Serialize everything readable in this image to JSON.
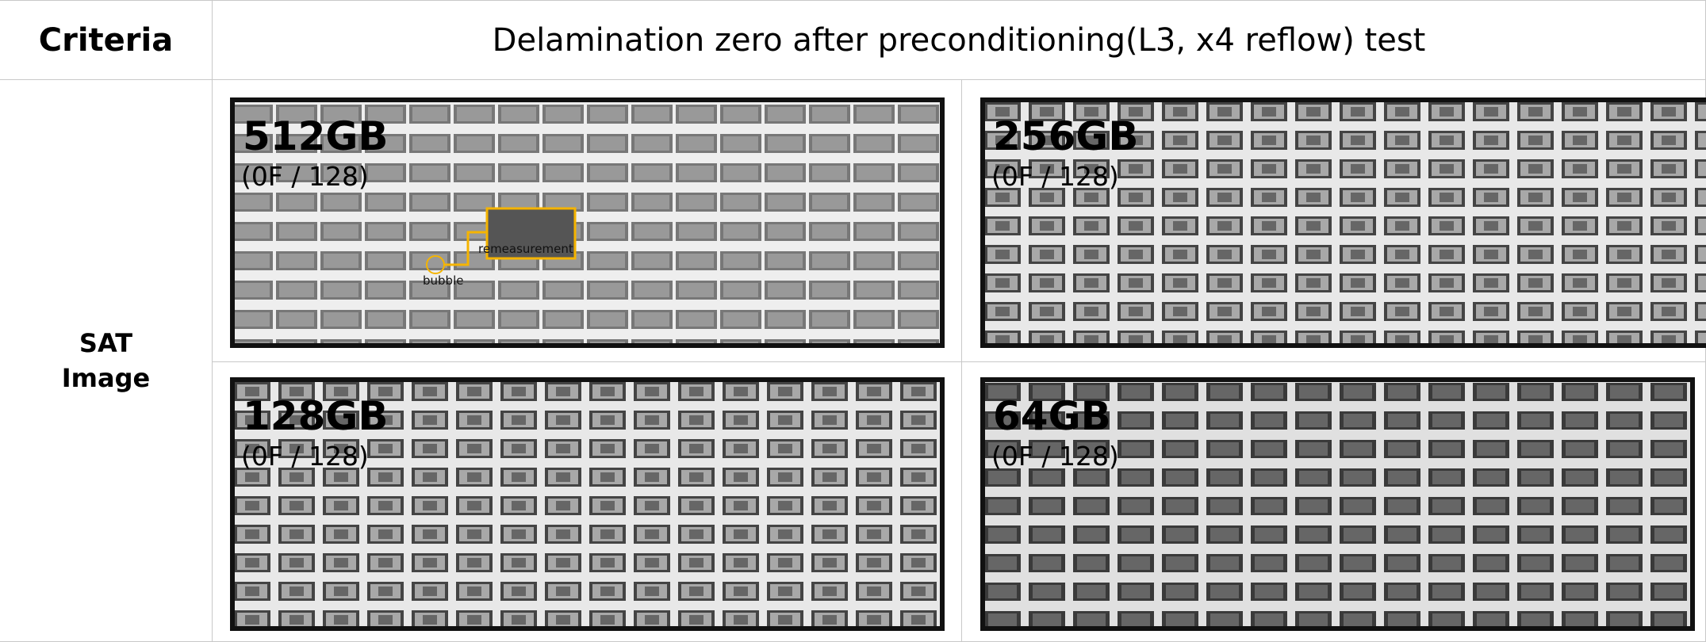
{
  "header": {
    "criteria": "Criteria",
    "title": "Delamination zero after preconditioning(L3, x4 reflow) test"
  },
  "row": {
    "label_lines": [
      "SAT",
      "Image"
    ]
  },
  "panels": [
    {
      "capacity": "512GB",
      "result": "(0F / 128)",
      "annotations": {
        "bubble": "bubble",
        "remeasurement": "remeasurement"
      }
    },
    {
      "capacity": "256GB",
      "result": "(0F / 128)"
    },
    {
      "capacity": "128GB",
      "result": "(0F / 128)"
    },
    {
      "capacity": "64GB",
      "result": "(0F / 128)"
    }
  ]
}
